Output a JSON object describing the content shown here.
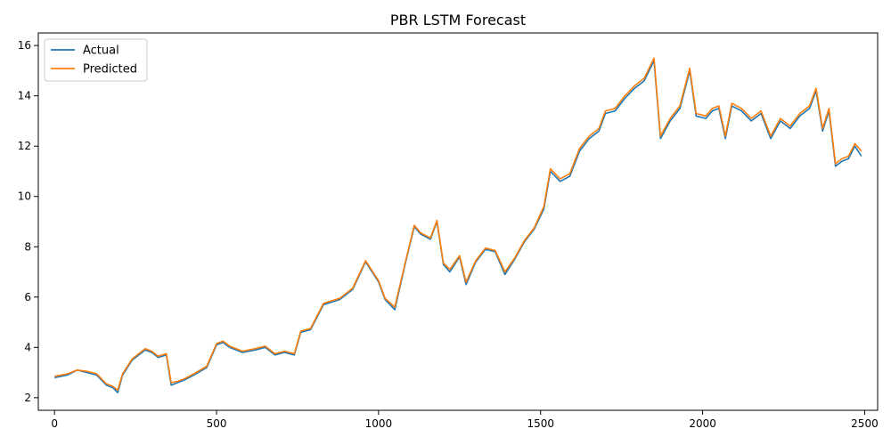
{
  "chart_data": {
    "type": "line",
    "title": "PBR LSTM Forecast",
    "xlabel": "",
    "ylabel": "",
    "xlim": [
      -50,
      2540
    ],
    "ylim": [
      1.5,
      16.5
    ],
    "x_ticks": [
      0,
      500,
      1000,
      1500,
      2000,
      2500
    ],
    "y_ticks": [
      2,
      4,
      6,
      8,
      10,
      12,
      14,
      16
    ],
    "grid": false,
    "legend_position": "top-left",
    "colors": {
      "actual": "#1f77b4",
      "predicted": "#ff7f0e"
    },
    "series": [
      {
        "name": "Actual",
        "color": "#1f77b4",
        "x": [
          0,
          40,
          70,
          100,
          130,
          160,
          180,
          195,
          210,
          240,
          280,
          300,
          320,
          345,
          360,
          380,
          400,
          430,
          470,
          500,
          520,
          540,
          580,
          620,
          650,
          680,
          710,
          740,
          760,
          790,
          830,
          880,
          920,
          960,
          1000,
          1020,
          1050,
          1080,
          1110,
          1130,
          1160,
          1180,
          1200,
          1220,
          1250,
          1270,
          1300,
          1330,
          1360,
          1390,
          1420,
          1450,
          1480,
          1510,
          1530,
          1560,
          1590,
          1620,
          1650,
          1680,
          1700,
          1730,
          1760,
          1790,
          1820,
          1850,
          1870,
          1900,
          1930,
          1960,
          1980,
          2010,
          2030,
          2050,
          2070,
          2090,
          2120,
          2150,
          2180,
          2210,
          2240,
          2270,
          2300,
          2330,
          2350,
          2370,
          2390,
          2410,
          2430,
          2450,
          2470,
          2490
        ],
        "values": [
          2.8,
          2.9,
          3.1,
          3.0,
          2.9,
          2.5,
          2.4,
          2.2,
          2.9,
          3.5,
          3.9,
          3.8,
          3.6,
          3.7,
          2.5,
          2.6,
          2.7,
          2.9,
          3.2,
          4.1,
          4.2,
          4.0,
          3.8,
          3.9,
          4.0,
          3.7,
          3.8,
          3.7,
          4.6,
          4.7,
          5.7,
          5.9,
          6.3,
          7.4,
          6.6,
          5.9,
          5.5,
          7.2,
          8.8,
          8.5,
          8.3,
          9.0,
          7.3,
          7.0,
          7.6,
          6.5,
          7.4,
          7.9,
          7.8,
          6.9,
          7.5,
          8.2,
          8.7,
          9.5,
          11.0,
          10.6,
          10.8,
          11.8,
          12.3,
          12.6,
          13.3,
          13.4,
          13.9,
          14.3,
          14.6,
          15.4,
          12.3,
          13.0,
          13.5,
          15.0,
          13.2,
          13.1,
          13.4,
          13.5,
          12.3,
          13.6,
          13.4,
          13.0,
          13.3,
          12.3,
          13.0,
          12.7,
          13.2,
          13.5,
          14.2,
          12.6,
          13.4,
          11.2,
          11.4,
          11.5,
          12.0,
          11.6
        ]
      },
      {
        "name": "Predicted",
        "color": "#ff7f0e",
        "x": [
          0,
          40,
          70,
          100,
          130,
          160,
          180,
          195,
          210,
          240,
          280,
          300,
          320,
          345,
          360,
          380,
          400,
          430,
          470,
          500,
          520,
          540,
          580,
          620,
          650,
          680,
          710,
          740,
          760,
          790,
          830,
          880,
          920,
          960,
          1000,
          1020,
          1050,
          1080,
          1110,
          1130,
          1160,
          1180,
          1200,
          1220,
          1250,
          1270,
          1300,
          1330,
          1360,
          1390,
          1420,
          1450,
          1480,
          1510,
          1530,
          1560,
          1590,
          1620,
          1650,
          1680,
          1700,
          1730,
          1760,
          1790,
          1820,
          1850,
          1870,
          1900,
          1930,
          1960,
          1980,
          2010,
          2030,
          2050,
          2070,
          2090,
          2120,
          2150,
          2180,
          2210,
          2240,
          2270,
          2300,
          2330,
          2350,
          2370,
          2390,
          2410,
          2430,
          2450,
          2470,
          2490
        ],
        "values": [
          2.85,
          2.95,
          3.1,
          3.05,
          2.95,
          2.55,
          2.45,
          2.3,
          2.95,
          3.55,
          3.95,
          3.85,
          3.65,
          3.75,
          2.6,
          2.65,
          2.75,
          2.95,
          3.25,
          4.15,
          4.25,
          4.05,
          3.85,
          3.95,
          4.05,
          3.75,
          3.85,
          3.75,
          4.65,
          4.75,
          5.75,
          5.95,
          6.35,
          7.45,
          6.65,
          5.95,
          5.6,
          7.25,
          8.85,
          8.55,
          8.35,
          9.05,
          7.35,
          7.1,
          7.65,
          6.6,
          7.45,
          7.95,
          7.85,
          7.0,
          7.55,
          8.25,
          8.75,
          9.6,
          11.1,
          10.7,
          10.9,
          11.9,
          12.4,
          12.7,
          13.4,
          13.5,
          14.0,
          14.4,
          14.7,
          15.5,
          12.4,
          13.1,
          13.6,
          15.1,
          13.3,
          13.2,
          13.5,
          13.6,
          12.4,
          13.7,
          13.5,
          13.1,
          13.4,
          12.4,
          13.1,
          12.8,
          13.3,
          13.6,
          14.3,
          12.7,
          13.5,
          11.3,
          11.5,
          11.6,
          12.1,
          11.8
        ]
      }
    ]
  }
}
